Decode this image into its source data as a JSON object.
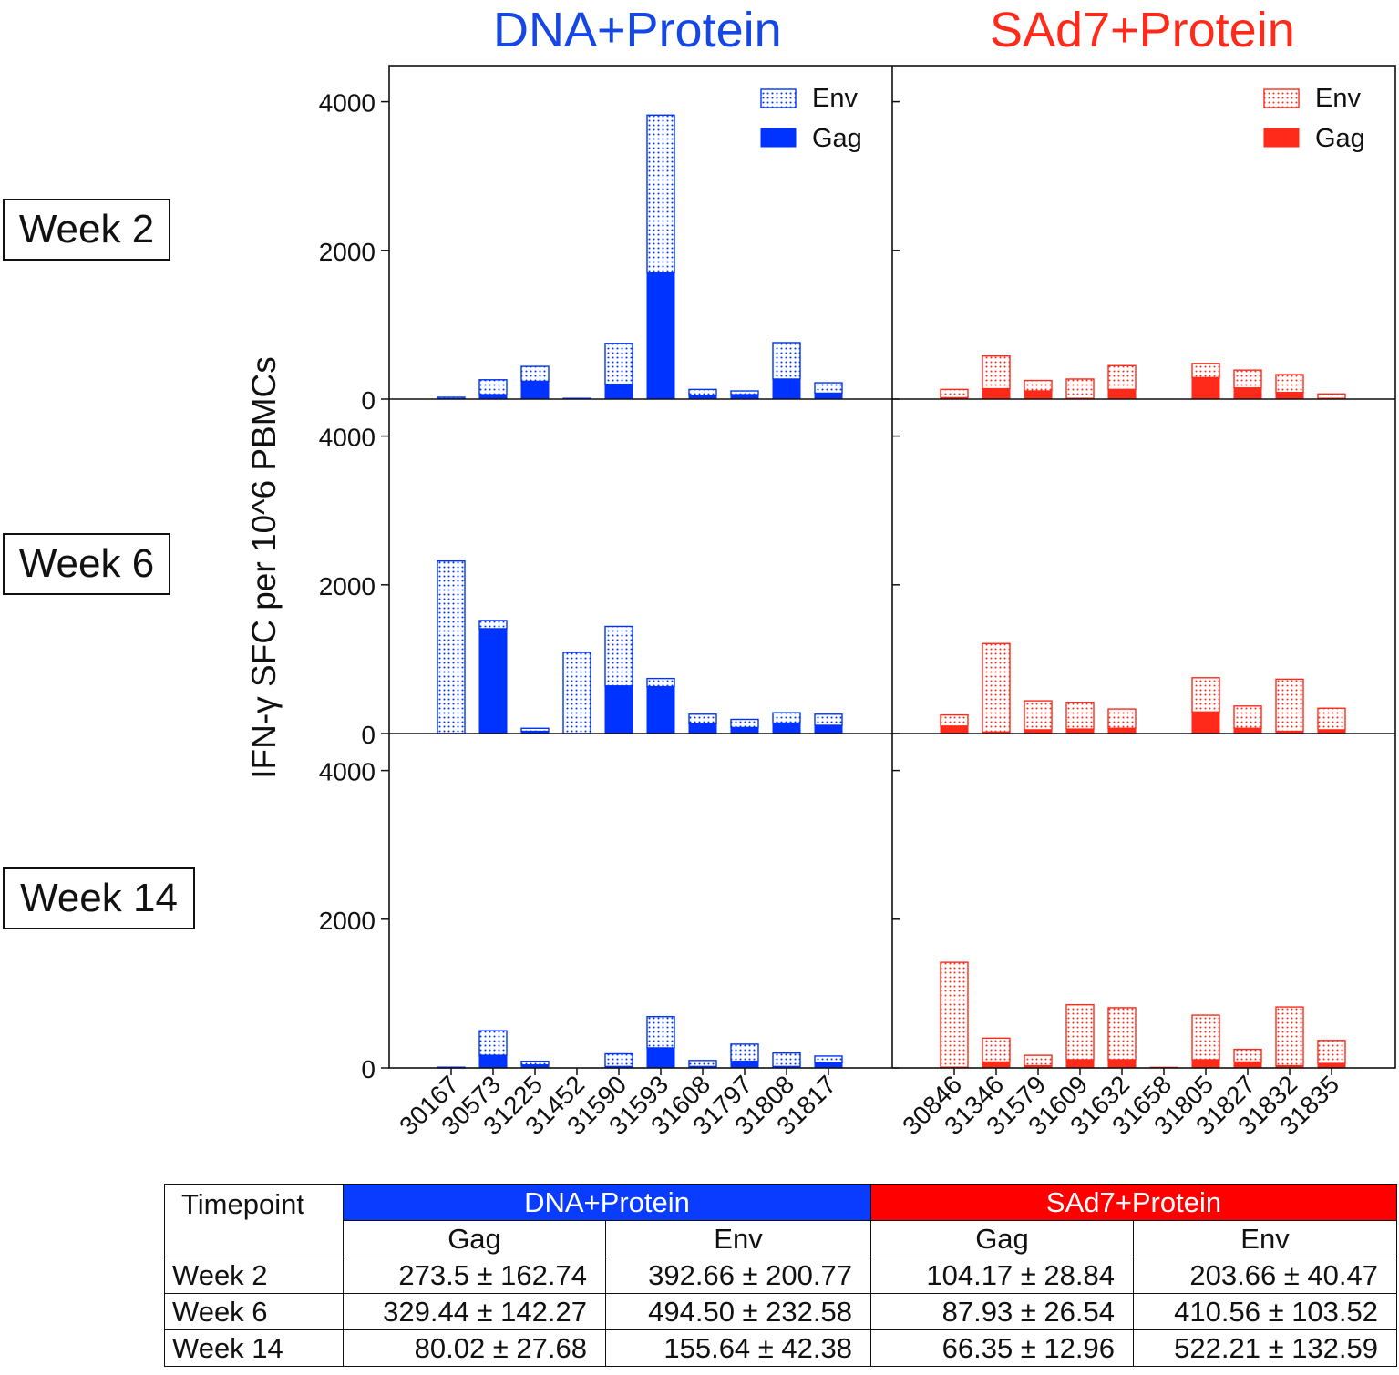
{
  "colors": {
    "dna": "#0033ff",
    "sad7": "#ff2a1a",
    "dna_title": "#1447e6",
    "sad7_title": "#ff2a1a"
  },
  "chart_data": {
    "type": "bar",
    "stacked": true,
    "ylabel": "IFN-γ SFC per 10^6 PBMCs",
    "ylim": [
      0,
      4500
    ],
    "yticks": [
      0,
      2000,
      4000
    ],
    "legend": {
      "position": "top-right",
      "entries": [
        "Env",
        "Gag"
      ]
    },
    "row_labels": [
      "Week 2",
      "Week 6",
      "Week 14"
    ],
    "groups": [
      {
        "title": "DNA+Protein",
        "color_key": "dna",
        "categories": [
          "30167",
          "30573",
          "31225",
          "31452",
          "31590",
          "31593",
          "31608",
          "31797",
          "31808",
          "31817"
        ],
        "timepoints": [
          {
            "label": "Week 2",
            "gag": [
              5,
              60,
              240,
              5,
              200,
              1700,
              50,
              60,
              270,
              80
            ],
            "env": [
              20,
              200,
              200,
              5,
              550,
              2120,
              80,
              50,
              490,
              140
            ]
          },
          {
            "label": "Week 6",
            "gag": [
              0,
              1410,
              30,
              0,
              640,
              630,
              130,
              80,
              140,
              110
            ],
            "env": [
              2320,
              110,
              40,
              1090,
              800,
              110,
              130,
              110,
              140,
              150
            ]
          },
          {
            "label": "Week 14",
            "gag": [
              0,
              170,
              40,
              0,
              20,
              270,
              20,
              90,
              20,
              70
            ],
            "env": [
              10,
              330,
              50,
              0,
              170,
              420,
              80,
              230,
              180,
              90
            ]
          }
        ]
      },
      {
        "title": "SAd7+Protein",
        "color_key": "sad7",
        "categories": [
          "30846",
          "31346",
          "31579",
          "31609",
          "31632",
          "31658",
          "31805",
          "31827",
          "31832",
          "31835"
        ],
        "timepoints": [
          {
            "label": "Week 2",
            "gag": [
              20,
              140,
              110,
              10,
              130,
              0,
              290,
              150,
              90,
              10
            ],
            "env": [
              110,
              440,
              140,
              260,
              320,
              0,
              190,
              240,
              240,
              60
            ]
          },
          {
            "label": "Week 6",
            "gag": [
              100,
              20,
              50,
              60,
              70,
              0,
              290,
              70,
              30,
              50
            ],
            "env": [
              150,
              1190,
              390,
              360,
              260,
              0,
              460,
              300,
              700,
              290
            ]
          },
          {
            "label": "Week 14",
            "gag": [
              10,
              80,
              30,
              110,
              110,
              10,
              110,
              80,
              30,
              60
            ],
            "env": [
              1410,
              320,
              140,
              740,
              700,
              0,
              600,
              170,
              790,
              310
            ]
          }
        ]
      }
    ]
  },
  "summary_table": {
    "corner": "Timepoint",
    "groups": [
      "DNA+Protein",
      "SAd7+Protein"
    ],
    "subheaders": [
      "Gag",
      "Env",
      "Gag",
      "Env"
    ],
    "rows": [
      {
        "timepoint": "Week 2",
        "values": [
          "273.5 ± 162.74",
          "392.66 ± 200.77",
          "104.17 ± 28.84",
          "203.66 ± 40.47"
        ]
      },
      {
        "timepoint": "Week 6",
        "values": [
          "329.44 ± 142.27",
          "494.50 ± 232.58",
          "87.93 ± 26.54",
          "410.56 ± 103.52"
        ]
      },
      {
        "timepoint": "Week 14",
        "values": [
          "80.02 ± 27.68",
          "155.64 ± 42.38",
          "66.35 ± 12.96",
          "522.21 ± 132.59"
        ]
      }
    ]
  }
}
